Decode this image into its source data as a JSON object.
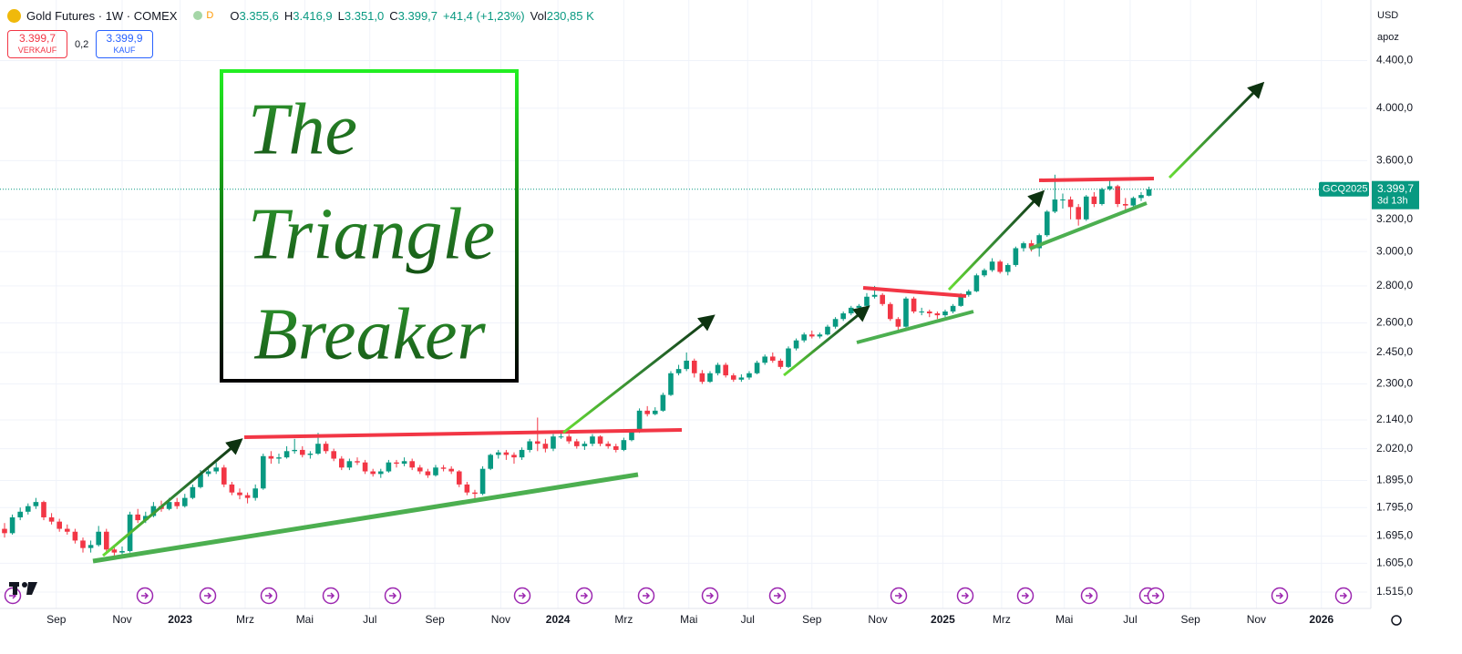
{
  "header": {
    "symbol": "Gold Futures · 1W · COMEX",
    "interval_badge": "D",
    "ohlc": [
      {
        "label": "O",
        "value": "3.355,6"
      },
      {
        "label": "H",
        "value": "3.416,9"
      },
      {
        "label": "L",
        "value": "3.351,0"
      },
      {
        "label": "C",
        "value": "3.399,7"
      }
    ],
    "change": "+41,4 (+1,23%)",
    "volume_label": "Vol",
    "volume": "230,85 K"
  },
  "trade": {
    "sell_price": "3.399,7",
    "sell_label": "VERKAUF",
    "spread": "0,2",
    "buy_price": "3.399,9",
    "buy_label": "KAUF"
  },
  "toolbar": {
    "currency": "USD",
    "scale_mode": "apoz"
  },
  "overlay": {
    "lines": [
      "The",
      "Triangle",
      "Breaker"
    ]
  },
  "chart_data": {
    "type": "candlestick",
    "log_scale": true,
    "grid": true,
    "up_color": "#089981",
    "down_color": "#f23645",
    "symbol_label": "GCQ2025",
    "countdown": "3d 13h",
    "last_price": {
      "value": 3399.7,
      "label": "3.399,7"
    },
    "xlim": [
      -0.58,
      173.84
    ],
    "xticks": [
      {
        "value": 6.6,
        "label": "Sep"
      },
      {
        "value": 15,
        "label": "Nov"
      },
      {
        "value": 22.4,
        "label": "2023"
      },
      {
        "value": 30.7,
        "label": "Mrz"
      },
      {
        "value": 38.3,
        "label": "Mai"
      },
      {
        "value": 46.6,
        "label": "Jul"
      },
      {
        "value": 54.9,
        "label": "Sep"
      },
      {
        "value": 63.3,
        "label": "Nov"
      },
      {
        "value": 70.6,
        "label": "2024"
      },
      {
        "value": 79,
        "label": "Mrz"
      },
      {
        "value": 87.3,
        "label": "Mai"
      },
      {
        "value": 94.8,
        "label": "Jul"
      },
      {
        "value": 103,
        "label": "Sep"
      },
      {
        "value": 111.4,
        "label": "Nov"
      },
      {
        "value": 119.7,
        "label": "2025"
      },
      {
        "value": 127.2,
        "label": "Mrz"
      },
      {
        "value": 135.2,
        "label": "Mai"
      },
      {
        "value": 143.6,
        "label": "Jul"
      },
      {
        "value": 151.3,
        "label": "Sep"
      },
      {
        "value": 159.7,
        "label": "Nov"
      },
      {
        "value": 168,
        "label": "2026"
      }
    ],
    "ylim": [
      1466,
      4969
    ],
    "yticks": [
      {
        "value": 1515,
        "label": "1.515,0"
      },
      {
        "value": 1605,
        "label": "1.605,0"
      },
      {
        "value": 1695,
        "label": "1.695,0"
      },
      {
        "value": 1795,
        "label": "1.795,0"
      },
      {
        "value": 1895,
        "label": "1.895,0"
      },
      {
        "value": 2020,
        "label": "2.020,0"
      },
      {
        "value": 2140,
        "label": "2.140,0"
      },
      {
        "value": 2300,
        "label": "2.300,0"
      },
      {
        "value": 2450,
        "label": "2.450,0"
      },
      {
        "value": 2600,
        "label": "2.600,0"
      },
      {
        "value": 2800,
        "label": "2.800,0"
      },
      {
        "value": 3000,
        "label": "3.000,0"
      },
      {
        "value": 3200,
        "label": "3.200,0"
      },
      {
        "value": 3600,
        "label": "3.600,0"
      },
      {
        "value": 4000,
        "label": "4.000,0"
      },
      {
        "value": 4400,
        "label": "4.400,0"
      }
    ],
    "candles": [
      [
        1720,
        1740,
        1690,
        1705
      ],
      [
        1705,
        1770,
        1700,
        1760
      ],
      [
        1760,
        1795,
        1750,
        1780
      ],
      [
        1780,
        1810,
        1770,
        1800
      ],
      [
        1800,
        1830,
        1790,
        1815
      ],
      [
        1815,
        1820,
        1750,
        1760
      ],
      [
        1760,
        1775,
        1735,
        1745
      ],
      [
        1745,
        1755,
        1710,
        1720
      ],
      [
        1720,
        1735,
        1700,
        1710
      ],
      [
        1710,
        1720,
        1670,
        1680
      ],
      [
        1680,
        1690,
        1640,
        1655
      ],
      [
        1655,
        1680,
        1640,
        1665
      ],
      [
        1665,
        1730,
        1660,
        1710
      ],
      [
        1710,
        1720,
        1640,
        1650
      ],
      [
        1650,
        1665,
        1625,
        1640
      ],
      [
        1640,
        1660,
        1630,
        1645
      ],
      [
        1645,
        1780,
        1640,
        1770
      ],
      [
        1770,
        1790,
        1740,
        1750
      ],
      [
        1750,
        1780,
        1740,
        1765
      ],
      [
        1765,
        1815,
        1760,
        1800
      ],
      [
        1800,
        1820,
        1780,
        1790
      ],
      [
        1790,
        1830,
        1785,
        1815
      ],
      [
        1815,
        1830,
        1790,
        1800
      ],
      [
        1800,
        1845,
        1795,
        1830
      ],
      [
        1830,
        1880,
        1825,
        1870
      ],
      [
        1870,
        1935,
        1865,
        1920
      ],
      [
        1920,
        1945,
        1910,
        1930
      ],
      [
        1930,
        1965,
        1920,
        1945
      ],
      [
        1945,
        1955,
        1870,
        1880
      ],
      [
        1880,
        1890,
        1840,
        1850
      ],
      [
        1850,
        1865,
        1825,
        1840
      ],
      [
        1840,
        1850,
        1810,
        1830
      ],
      [
        1830,
        1880,
        1820,
        1865
      ],
      [
        1865,
        2000,
        1860,
        1990
      ],
      [
        1990,
        2010,
        1960,
        1980
      ],
      [
        1980,
        2000,
        1960,
        1985
      ],
      [
        1985,
        2030,
        1980,
        2010
      ],
      [
        2010,
        2060,
        2000,
        2015
      ],
      [
        2015,
        2030,
        1985,
        1995
      ],
      [
        1995,
        2010,
        1980,
        2000
      ],
      [
        2000,
        2085,
        1995,
        2040
      ],
      [
        2040,
        2050,
        2000,
        2010
      ],
      [
        2010,
        2020,
        1970,
        1980
      ],
      [
        1980,
        1990,
        1935,
        1945
      ],
      [
        1945,
        1980,
        1935,
        1970
      ],
      [
        1970,
        1985,
        1955,
        1965
      ],
      [
        1965,
        1975,
        1920,
        1930
      ],
      [
        1930,
        1940,
        1910,
        1920
      ],
      [
        1920,
        1940,
        1905,
        1930
      ],
      [
        1930,
        1975,
        1925,
        1965
      ],
      [
        1965,
        1975,
        1945,
        1960
      ],
      [
        1960,
        1985,
        1950,
        1970
      ],
      [
        1970,
        1980,
        1935,
        1945
      ],
      [
        1945,
        1955,
        1920,
        1930
      ],
      [
        1930,
        1940,
        1905,
        1915
      ],
      [
        1915,
        1955,
        1910,
        1945
      ],
      [
        1945,
        1955,
        1930,
        1940
      ],
      [
        1940,
        1950,
        1920,
        1930
      ],
      [
        1930,
        1935,
        1870,
        1880
      ],
      [
        1880,
        1890,
        1840,
        1850
      ],
      [
        1850,
        1860,
        1820,
        1845
      ],
      [
        1845,
        1950,
        1840,
        1940
      ],
      [
        1940,
        2000,
        1935,
        1995
      ],
      [
        1995,
        2015,
        1980,
        2005
      ],
      [
        2005,
        2015,
        1975,
        1995
      ],
      [
        1995,
        2005,
        1960,
        1985
      ],
      [
        1985,
        2025,
        1975,
        2015
      ],
      [
        2015,
        2060,
        2005,
        2050
      ],
      [
        2050,
        2150,
        2010,
        2040
      ],
      [
        2040,
        2060,
        2005,
        2020
      ],
      [
        2020,
        2080,
        2010,
        2070
      ],
      [
        2070,
        2090,
        2060,
        2070
      ],
      [
        2070,
        2080,
        2040,
        2050
      ],
      [
        2050,
        2060,
        2020,
        2030
      ],
      [
        2030,
        2050,
        2015,
        2040
      ],
      [
        2040,
        2080,
        2030,
        2070
      ],
      [
        2070,
        2075,
        2030,
        2040
      ],
      [
        2040,
        2050,
        2020,
        2030
      ],
      [
        2030,
        2040,
        2005,
        2015
      ],
      [
        2015,
        2065,
        2010,
        2055
      ],
      [
        2055,
        2100,
        2050,
        2090
      ],
      [
        2090,
        2190,
        2085,
        2180
      ],
      [
        2180,
        2200,
        2155,
        2165
      ],
      [
        2165,
        2195,
        2160,
        2180
      ],
      [
        2180,
        2260,
        2175,
        2250
      ],
      [
        2250,
        2360,
        2245,
        2350
      ],
      [
        2350,
        2390,
        2340,
        2370
      ],
      [
        2370,
        2450,
        2360,
        2410
      ],
      [
        2410,
        2420,
        2330,
        2350
      ],
      [
        2350,
        2365,
        2300,
        2310
      ],
      [
        2310,
        2360,
        2305,
        2350
      ],
      [
        2350,
        2400,
        2340,
        2390
      ],
      [
        2390,
        2400,
        2330,
        2340
      ],
      [
        2340,
        2350,
        2310,
        2320
      ],
      [
        2320,
        2345,
        2310,
        2330
      ],
      [
        2330,
        2360,
        2320,
        2350
      ],
      [
        2350,
        2410,
        2345,
        2400
      ],
      [
        2400,
        2440,
        2390,
        2430
      ],
      [
        2430,
        2450,
        2400,
        2410
      ],
      [
        2410,
        2420,
        2370,
        2380
      ],
      [
        2380,
        2480,
        2375,
        2470
      ],
      [
        2470,
        2520,
        2460,
        2510
      ],
      [
        2510,
        2550,
        2500,
        2540
      ],
      [
        2540,
        2560,
        2520,
        2530
      ],
      [
        2530,
        2550,
        2520,
        2540
      ],
      [
        2540,
        2590,
        2535,
        2580
      ],
      [
        2580,
        2630,
        2570,
        2620
      ],
      [
        2620,
        2660,
        2610,
        2650
      ],
      [
        2650,
        2690,
        2640,
        2680
      ],
      [
        2680,
        2700,
        2670,
        2690
      ],
      [
        2690,
        2760,
        2685,
        2740
      ],
      [
        2740,
        2800,
        2730,
        2750
      ],
      [
        2750,
        2760,
        2690,
        2700
      ],
      [
        2700,
        2710,
        2610,
        2620
      ],
      [
        2620,
        2630,
        2560,
        2580
      ],
      [
        2580,
        2740,
        2575,
        2730
      ],
      [
        2730,
        2740,
        2650,
        2660
      ],
      [
        2660,
        2680,
        2640,
        2660
      ],
      [
        2660,
        2670,
        2630,
        2650
      ],
      [
        2650,
        2660,
        2620,
        2640
      ],
      [
        2640,
        2670,
        2630,
        2660
      ],
      [
        2660,
        2700,
        2650,
        2690
      ],
      [
        2690,
        2760,
        2685,
        2750
      ],
      [
        2750,
        2780,
        2740,
        2770
      ],
      [
        2770,
        2870,
        2765,
        2860
      ],
      [
        2860,
        2900,
        2850,
        2890
      ],
      [
        2890,
        2960,
        2880,
        2940
      ],
      [
        2940,
        2950,
        2870,
        2880
      ],
      [
        2880,
        2930,
        2860,
        2920
      ],
      [
        2920,
        3030,
        2910,
        3020
      ],
      [
        3020,
        3060,
        3000,
        3050
      ],
      [
        3050,
        3070,
        3000,
        3020
      ],
      [
        3020,
        3110,
        2970,
        3100
      ],
      [
        3100,
        3260,
        3090,
        3250
      ],
      [
        3250,
        3500,
        3240,
        3330
      ],
      [
        3330,
        3370,
        3270,
        3330
      ],
      [
        3330,
        3350,
        3200,
        3280
      ],
      [
        3280,
        3300,
        3160,
        3200
      ],
      [
        3200,
        3360,
        3190,
        3350
      ],
      [
        3350,
        3380,
        3280,
        3300
      ],
      [
        3300,
        3410,
        3290,
        3400
      ],
      [
        3400,
        3470,
        3390,
        3420
      ],
      [
        3420,
        3430,
        3280,
        3300
      ],
      [
        3300,
        3340,
        3250,
        3290
      ],
      [
        3290,
        3350,
        3280,
        3340
      ],
      [
        3340,
        3380,
        3320,
        3360
      ],
      [
        3355.6,
        3416.9,
        3351,
        3399.7
      ]
    ]
  }
}
